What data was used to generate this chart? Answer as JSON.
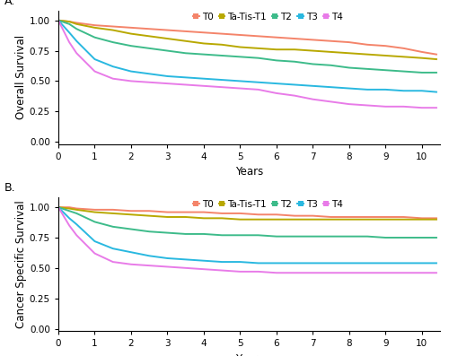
{
  "panel_A_label": "A.",
  "panel_B_label": "B.",
  "xlabel": "Years",
  "ylabel_A": "Overall Survival",
  "ylabel_B": "Cancer Specific Survival",
  "legend_labels": [
    "T0",
    "Ta-Tis-T1",
    "T2",
    "T3",
    "T4"
  ],
  "colors": [
    "#F4846A",
    "#B8A800",
    "#3DBB8A",
    "#29B8E0",
    "#E87BE8"
  ],
  "xlim": [
    0,
    10.5
  ],
  "ylim": [
    -0.02,
    1.08
  ],
  "xticks": [
    0,
    1,
    2,
    3,
    4,
    5,
    6,
    7,
    8,
    9,
    10
  ],
  "yticks": [
    0.0,
    0.25,
    0.5,
    0.75,
    1.0
  ],
  "curves_A": {
    "T0": {
      "x": [
        0,
        0.3,
        0.5,
        1,
        1.5,
        2,
        2.5,
        3,
        3.5,
        4,
        4.5,
        5,
        5.5,
        6,
        6.5,
        7,
        7.5,
        8,
        8.5,
        9,
        9.5,
        10,
        10.4
      ],
      "y": [
        1.0,
        0.99,
        0.98,
        0.96,
        0.95,
        0.94,
        0.93,
        0.92,
        0.91,
        0.9,
        0.89,
        0.88,
        0.87,
        0.86,
        0.85,
        0.84,
        0.83,
        0.82,
        0.8,
        0.79,
        0.77,
        0.74,
        0.72
      ]
    },
    "Ta-Tis-T1": {
      "x": [
        0,
        0.3,
        0.5,
        1,
        1.5,
        2,
        2.5,
        3,
        3.5,
        4,
        4.5,
        5,
        5.5,
        6,
        6.5,
        7,
        7.5,
        8,
        8.5,
        9,
        9.5,
        10,
        10.4
      ],
      "y": [
        1.0,
        0.99,
        0.97,
        0.94,
        0.92,
        0.89,
        0.87,
        0.85,
        0.83,
        0.81,
        0.8,
        0.78,
        0.77,
        0.76,
        0.76,
        0.75,
        0.74,
        0.73,
        0.72,
        0.71,
        0.7,
        0.69,
        0.68
      ]
    },
    "T2": {
      "x": [
        0,
        0.3,
        0.5,
        1,
        1.5,
        2,
        2.5,
        3,
        3.5,
        4,
        4.5,
        5,
        5.5,
        6,
        6.5,
        7,
        7.5,
        8,
        8.5,
        9,
        9.5,
        10,
        10.4
      ],
      "y": [
        1.0,
        0.97,
        0.93,
        0.86,
        0.82,
        0.79,
        0.77,
        0.75,
        0.73,
        0.72,
        0.71,
        0.7,
        0.69,
        0.67,
        0.66,
        0.64,
        0.63,
        0.61,
        0.6,
        0.59,
        0.58,
        0.57,
        0.57
      ]
    },
    "T3": {
      "x": [
        0,
        0.3,
        0.5,
        1,
        1.5,
        2,
        2.5,
        3,
        3.5,
        4,
        4.5,
        5,
        5.5,
        6,
        6.5,
        7,
        7.5,
        8,
        8.5,
        9,
        9.5,
        10,
        10.4
      ],
      "y": [
        1.0,
        0.9,
        0.83,
        0.68,
        0.62,
        0.58,
        0.56,
        0.54,
        0.53,
        0.52,
        0.51,
        0.5,
        0.49,
        0.48,
        0.47,
        0.46,
        0.45,
        0.44,
        0.43,
        0.43,
        0.42,
        0.42,
        0.41
      ]
    },
    "T4": {
      "x": [
        0,
        0.3,
        0.5,
        1,
        1.5,
        2,
        2.5,
        3,
        3.5,
        4,
        4.5,
        5,
        5.5,
        6,
        6.5,
        7,
        7.5,
        8,
        8.5,
        9,
        9.5,
        10,
        10.4
      ],
      "y": [
        1.0,
        0.82,
        0.73,
        0.58,
        0.52,
        0.5,
        0.49,
        0.48,
        0.47,
        0.46,
        0.45,
        0.44,
        0.43,
        0.4,
        0.38,
        0.35,
        0.33,
        0.31,
        0.3,
        0.29,
        0.29,
        0.28,
        0.28
      ]
    }
  },
  "curves_B": {
    "T0": {
      "x": [
        0,
        0.3,
        0.5,
        1,
        1.5,
        2,
        2.5,
        3,
        3.5,
        4,
        4.5,
        5,
        5.5,
        6,
        6.5,
        7,
        7.5,
        8,
        8.5,
        9,
        9.5,
        10,
        10.4
      ],
      "y": [
        1.0,
        1.0,
        0.99,
        0.98,
        0.98,
        0.97,
        0.97,
        0.96,
        0.96,
        0.96,
        0.95,
        0.95,
        0.94,
        0.94,
        0.93,
        0.93,
        0.92,
        0.92,
        0.92,
        0.92,
        0.92,
        0.91,
        0.91
      ]
    },
    "Ta-Tis-T1": {
      "x": [
        0,
        0.3,
        0.5,
        1,
        1.5,
        2,
        2.5,
        3,
        3.5,
        4,
        4.5,
        5,
        5.5,
        6,
        6.5,
        7,
        7.5,
        8,
        8.5,
        9,
        9.5,
        10,
        10.4
      ],
      "y": [
        1.0,
        0.99,
        0.98,
        0.96,
        0.95,
        0.94,
        0.93,
        0.92,
        0.92,
        0.91,
        0.91,
        0.9,
        0.9,
        0.9,
        0.9,
        0.9,
        0.9,
        0.9,
        0.9,
        0.9,
        0.9,
        0.9,
        0.9
      ]
    },
    "T2": {
      "x": [
        0,
        0.3,
        0.5,
        1,
        1.5,
        2,
        2.5,
        3,
        3.5,
        4,
        4.5,
        5,
        5.5,
        6,
        6.5,
        7,
        7.5,
        8,
        8.5,
        9,
        9.5,
        10,
        10.4
      ],
      "y": [
        1.0,
        0.97,
        0.95,
        0.88,
        0.84,
        0.82,
        0.8,
        0.79,
        0.78,
        0.78,
        0.77,
        0.77,
        0.77,
        0.76,
        0.76,
        0.76,
        0.76,
        0.76,
        0.76,
        0.75,
        0.75,
        0.75,
        0.75
      ]
    },
    "T3": {
      "x": [
        0,
        0.3,
        0.5,
        1,
        1.5,
        2,
        2.5,
        3,
        3.5,
        4,
        4.5,
        5,
        5.5,
        6,
        6.5,
        7,
        7.5,
        8,
        8.5,
        9,
        9.5,
        10,
        10.4
      ],
      "y": [
        1.0,
        0.91,
        0.86,
        0.72,
        0.66,
        0.63,
        0.6,
        0.58,
        0.57,
        0.56,
        0.55,
        0.55,
        0.54,
        0.54,
        0.54,
        0.54,
        0.54,
        0.54,
        0.54,
        0.54,
        0.54,
        0.54,
        0.54
      ]
    },
    "T4": {
      "x": [
        0,
        0.3,
        0.5,
        1,
        1.5,
        2,
        2.5,
        3,
        3.5,
        4,
        4.5,
        5,
        5.5,
        6,
        6.5,
        7,
        7.5,
        8,
        8.5,
        9,
        9.5,
        10,
        10.4
      ],
      "y": [
        1.0,
        0.85,
        0.77,
        0.62,
        0.55,
        0.53,
        0.52,
        0.51,
        0.5,
        0.49,
        0.48,
        0.47,
        0.47,
        0.46,
        0.46,
        0.46,
        0.46,
        0.46,
        0.46,
        0.46,
        0.46,
        0.46,
        0.46
      ]
    }
  },
  "linewidth": 1.4,
  "legend_fontsize": 7.5,
  "axis_fontsize": 8.5,
  "tick_fontsize": 7.5,
  "label_fontsize": 9
}
